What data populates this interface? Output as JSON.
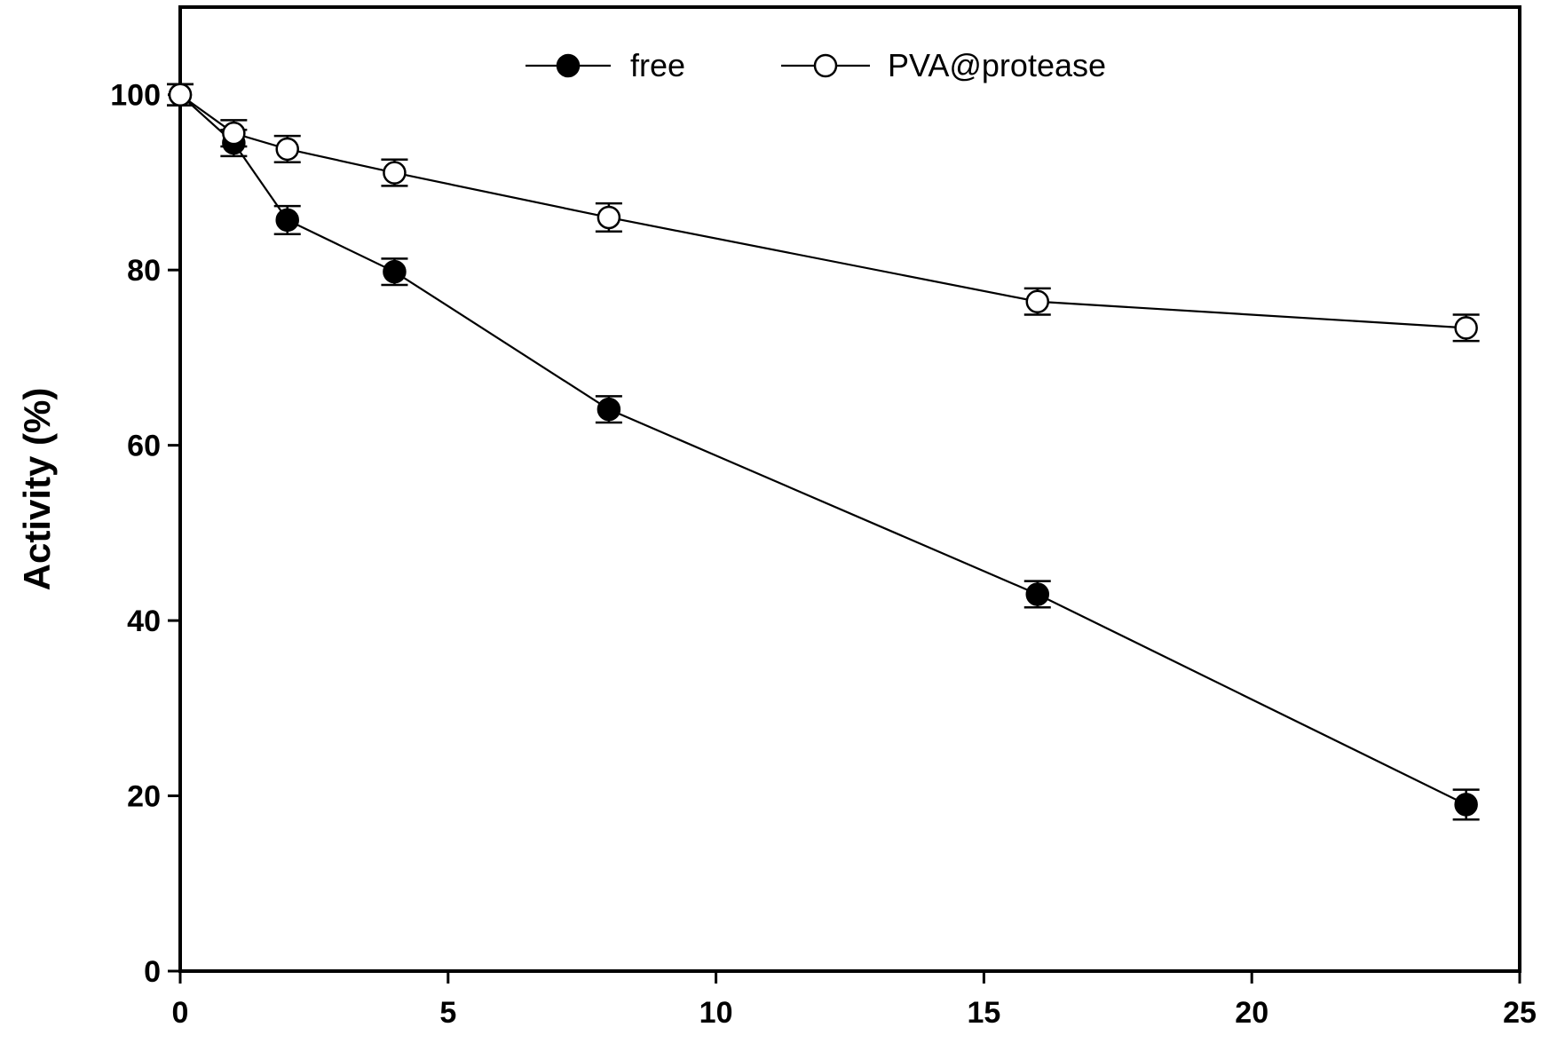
{
  "chart_data": {
    "type": "line",
    "title": "",
    "xlabel": "",
    "ylabel": "Activity (%)",
    "xlim": [
      0,
      25
    ],
    "ylim": [
      0,
      110
    ],
    "xticks": [
      0,
      5,
      10,
      15,
      20,
      25
    ],
    "yticks": [
      0,
      20,
      40,
      60,
      80,
      100
    ],
    "x_tick_labels": [
      "0",
      "5",
      "10",
      "15",
      "20",
      "25"
    ],
    "y_tick_labels": [
      "0",
      "20",
      "40",
      "60",
      "80",
      "100"
    ],
    "grid": false,
    "legend_position": "top-center",
    "series": [
      {
        "name": "free",
        "marker": "filled-circle",
        "color": "#000000",
        "x": [
          0,
          1,
          2,
          4,
          8,
          16,
          24
        ],
        "y": [
          100,
          94.5,
          85.7,
          79.8,
          64.1,
          43.0,
          19.0
        ],
        "error": [
          1.2,
          1.5,
          1.6,
          1.5,
          1.5,
          1.5,
          1.7
        ]
      },
      {
        "name": "PVA@protease",
        "marker": "open-circle",
        "color": "#000000",
        "x": [
          0,
          1,
          2,
          4,
          8,
          16,
          24
        ],
        "y": [
          100,
          95.6,
          93.8,
          91.1,
          86.0,
          76.4,
          73.4
        ],
        "error": [
          1.2,
          1.5,
          1.5,
          1.5,
          1.6,
          1.5,
          1.5
        ]
      }
    ]
  }
}
